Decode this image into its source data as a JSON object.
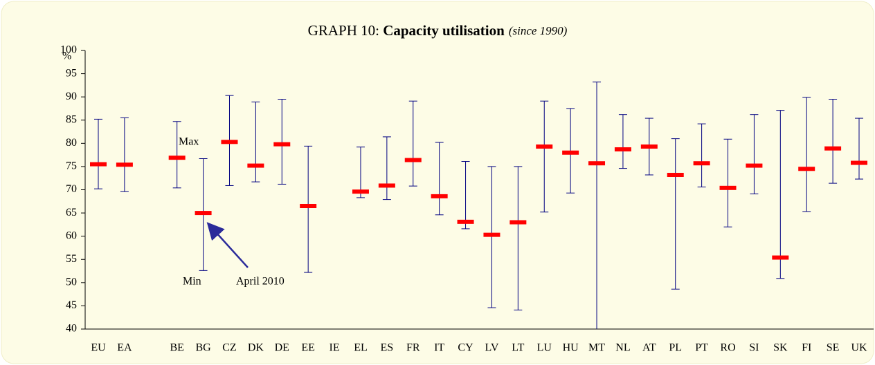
{
  "chart_data": {
    "type": "range",
    "title": {
      "prefix": "GRAPH 10: ",
      "main": "Capacity utilisation",
      "note": "(since 1990)"
    },
    "y_unit": "%",
    "categories": [
      "EU",
      "EA",
      null,
      "BE",
      "BG",
      "CZ",
      "DK",
      "DE",
      "EE",
      "IE",
      "EL",
      "ES",
      "FR",
      "IT",
      "CY",
      "LV",
      "LT",
      "LU",
      "HU",
      "MT",
      "NL",
      "AT",
      "PL",
      "PT",
      "RO",
      "SI",
      "SK",
      "FI",
      "SE",
      "UK"
    ],
    "series": [
      {
        "name": "April 2010",
        "color": "#ff0000",
        "values": [
          75.5,
          75.4,
          null,
          76.9,
          65,
          80.3,
          75.2,
          79.8,
          66.5,
          null,
          69.6,
          70.9,
          76.4,
          68.6,
          63.1,
          60.3,
          63,
          79.3,
          78,
          75.7,
          78.7,
          79.3,
          73.2,
          75.7,
          70.4,
          75.2,
          55.4,
          74.5,
          78.9,
          75.8
        ]
      },
      {
        "name": "Max",
        "color": "#000080",
        "values": [
          85.2,
          85.5,
          null,
          84.7,
          76.7,
          90.3,
          88.9,
          89.5,
          79.4,
          null,
          79.2,
          81.4,
          89.1,
          80.2,
          76.1,
          75,
          75,
          89.1,
          87.5,
          93.2,
          86.2,
          85.4,
          81,
          84.2,
          80.9,
          86.2,
          87.1,
          89.9,
          89.5,
          85.4
        ]
      },
      {
        "name": "Min",
        "color": "#000080",
        "values": [
          70.2,
          69.6,
          null,
          70.4,
          52.6,
          70.9,
          71.7,
          71.2,
          52.2,
          null,
          68.3,
          67.9,
          70.8,
          64.6,
          61.6,
          44.6,
          44.1,
          65.2,
          69.3,
          38,
          74.6,
          73.2,
          48.6,
          70.6,
          62,
          69.1,
          50.9,
          65.3,
          71.4,
          72.3
        ]
      }
    ],
    "ylim": [
      40,
      100
    ],
    "yticks": [
      40,
      45,
      50,
      55,
      60,
      65,
      70,
      75,
      80,
      85,
      90,
      95,
      100
    ]
  }
}
